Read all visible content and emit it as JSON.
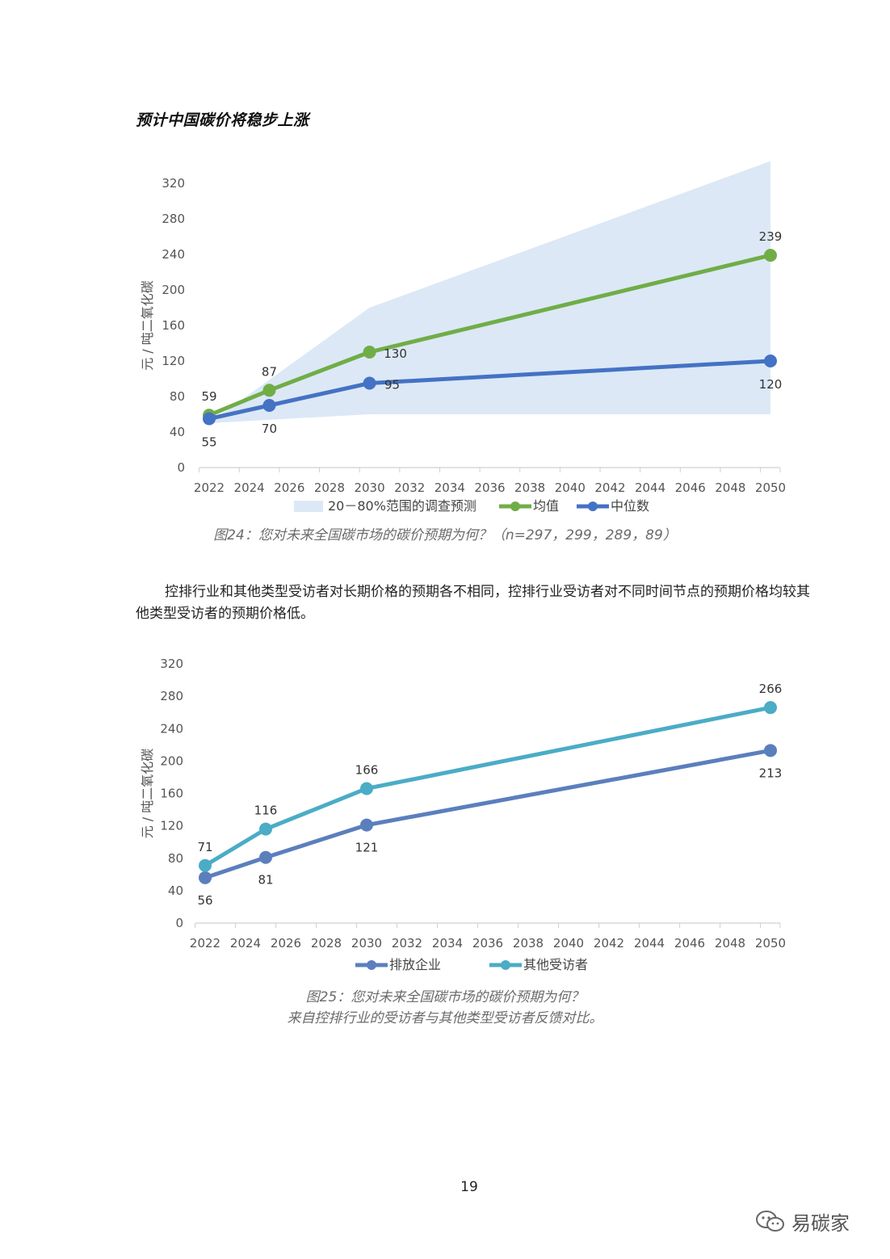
{
  "heading": "预计中国碳价将稳步上涨",
  "chart_data": [
    {
      "type": "line",
      "ylabel": "元 / 吨二氧化碳",
      "ylim": [
        0,
        320
      ],
      "yticks": [
        0,
        40,
        80,
        120,
        160,
        200,
        240,
        280,
        320
      ],
      "xticks": [
        2022,
        2024,
        2026,
        2028,
        2030,
        2032,
        2034,
        2036,
        2038,
        2040,
        2042,
        2044,
        2046,
        2048,
        2050
      ],
      "xlim": [
        2022,
        2050
      ],
      "band": {
        "name": "20－80%范围的调查预测",
        "color": "#dce8f6",
        "x": [
          2022,
          2030,
          2050
        ],
        "lower": [
          50,
          60,
          60
        ],
        "upper": [
          50,
          180,
          345
        ]
      },
      "series": [
        {
          "name": "均值",
          "color": "#70ad47",
          "x": [
            2022,
            2025,
            2030,
            2050
          ],
          "values": [
            59,
            87,
            130,
            239
          ]
        },
        {
          "name": "中位数",
          "color": "#4472c4",
          "x": [
            2022,
            2025,
            2030,
            2050
          ],
          "values": [
            55,
            70,
            95,
            120
          ]
        }
      ],
      "caption": "图24：您对未来全国碳市场的碳价预期为何？（n=297，299，289，89）"
    },
    {
      "type": "line",
      "ylabel": "元 / 吨二氧化碳",
      "ylim": [
        0,
        320
      ],
      "yticks": [
        0,
        40,
        80,
        120,
        160,
        200,
        240,
        280,
        320
      ],
      "xticks": [
        2022,
        2024,
        2026,
        2028,
        2030,
        2032,
        2034,
        2036,
        2038,
        2040,
        2042,
        2044,
        2046,
        2048,
        2050
      ],
      "xlim": [
        2022,
        2050
      ],
      "series": [
        {
          "name": "排放企业",
          "color": "#5b7fbd",
          "x": [
            2022,
            2025,
            2030,
            2050
          ],
          "values": [
            56,
            81,
            121,
            213
          ]
        },
        {
          "name": "其他受访者",
          "color": "#4bacc6",
          "x": [
            2022,
            2025,
            2030,
            2050
          ],
          "values": [
            71,
            116,
            166,
            266
          ]
        }
      ],
      "caption_line1": "图25：您对未来全国碳市场的碳价预期为何？",
      "caption_line2": "来自控排行业的受访者与其他类型受访者反馈对比。"
    }
  ],
  "paragraph": "控排行业和其他类型受访者对长期价格的预期各不相同，控排行业受访者对不同时间节点的预期价格均较其他类型受访者的预期价格低。",
  "page_number": "19",
  "watermark": "易碳家",
  "watermark_icon": "wechat-icon"
}
